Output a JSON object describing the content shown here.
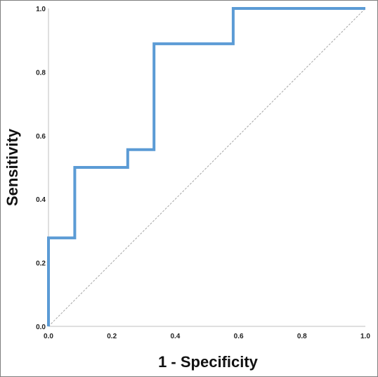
{
  "chart_data": {
    "type": "line",
    "title": "",
    "xlabel": "1 - Specificity",
    "ylabel": "Sensitivity",
    "xlim": [
      0.0,
      1.0
    ],
    "ylim": [
      0.0,
      1.0
    ],
    "x_ticks": [
      "0.0",
      "0.2",
      "0.4",
      "0.6",
      "0.8",
      "1.0"
    ],
    "y_ticks": [
      "0.0",
      "0.2",
      "0.4",
      "0.6",
      "0.8",
      "1.0"
    ],
    "grid": false,
    "legend": "none",
    "series": [
      {
        "x": [
          0.0,
          0.0,
          0.083,
          0.083,
          0.25,
          0.25,
          0.333,
          0.333,
          0.583,
          0.583,
          1.0
        ],
        "y": [
          0.0,
          0.278,
          0.278,
          0.5,
          0.5,
          0.556,
          0.556,
          0.889,
          0.889,
          1.0,
          1.0
        ],
        "color": "#5b9bd5",
        "style": "step"
      },
      {
        "x": [
          0.0,
          1.0
        ],
        "y": [
          0.0,
          1.0
        ],
        "color": "#a6a6a6",
        "style": "dashed"
      }
    ]
  }
}
